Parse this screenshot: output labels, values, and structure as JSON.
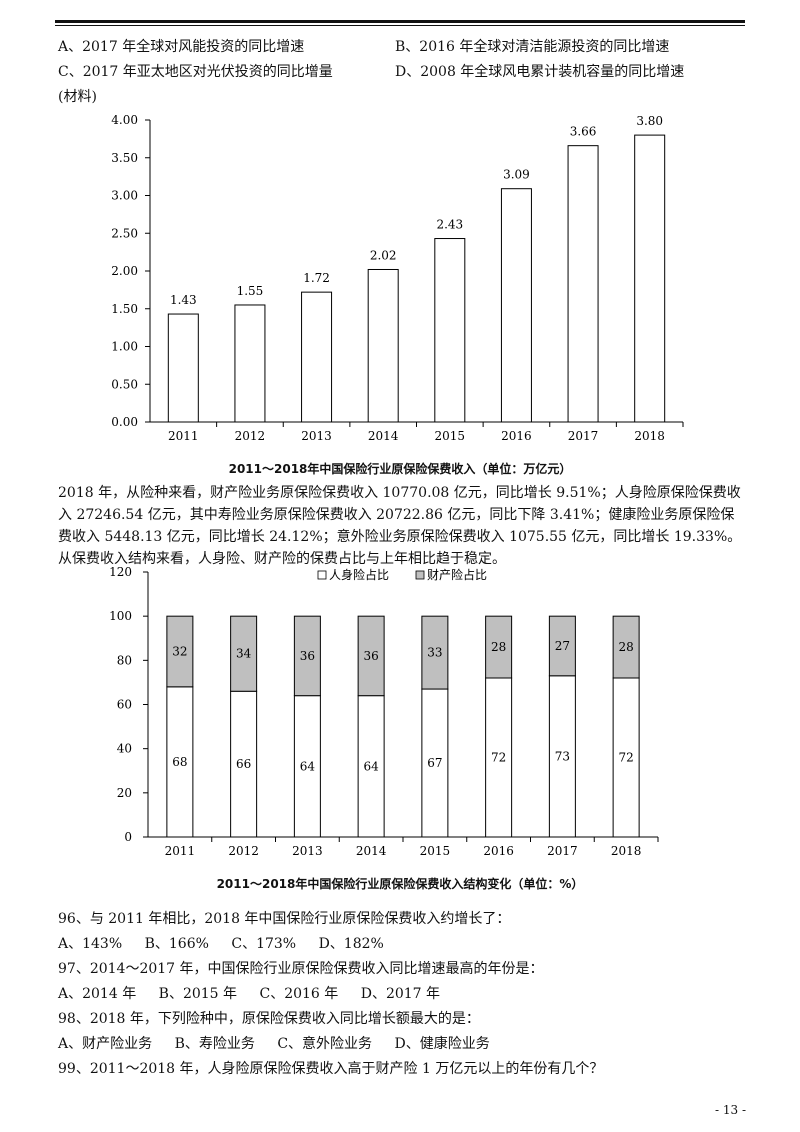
{
  "header_options": {
    "a": "A、2017 年全球对风能投资的同比增速",
    "b": "B、2016 年全球对清洁能源投资的同比增速",
    "c": "C、2017 年亚太地区对光伏投资的同比增量",
    "d": "D、2008 年全球风电累计装机容量的同比增速"
  },
  "material_label": "(材料)",
  "chart_data": [
    {
      "type": "bar",
      "title": "2011～2018年中国保险行业原保险保费收入（单位：万亿元）",
      "categories": [
        "2011",
        "2012",
        "2013",
        "2014",
        "2015",
        "2016",
        "2017",
        "2018"
      ],
      "values": [
        1.43,
        1.55,
        1.72,
        2.02,
        2.43,
        3.09,
        3.66,
        3.8
      ],
      "value_labels": [
        "1.43",
        "1.55",
        "1.72",
        "2.02",
        "2.43",
        "3.09",
        "3.66",
        "3.80"
      ],
      "ylim": [
        0,
        4
      ],
      "yticks": [
        "0.00",
        "0.50",
        "1.00",
        "1.50",
        "2.00",
        "2.50",
        "3.00",
        "3.50",
        "4.00"
      ],
      "grid": false
    },
    {
      "type": "bar",
      "stacked": true,
      "title": "2011～2018年中国保险行业原保险保费收入结构变化（单位：%）",
      "categories": [
        "2011",
        "2012",
        "2013",
        "2014",
        "2015",
        "2016",
        "2017",
        "2018"
      ],
      "series": [
        {
          "name": "人身险占比",
          "values": [
            68,
            66,
            64,
            64,
            67,
            72,
            73,
            72
          ],
          "color": "#ffffff"
        },
        {
          "name": "财产险占比",
          "values": [
            32,
            34,
            36,
            36,
            33,
            28,
            27,
            28
          ],
          "color": "#bfbfbf"
        }
      ],
      "ylim": [
        0,
        120
      ],
      "yticks": [
        "0",
        "20",
        "40",
        "60",
        "80",
        "100",
        "120"
      ],
      "legend": "top",
      "grid": false
    }
  ],
  "paragraph": "2018 年，从险种来看，财产险业务原保险保费收入 10770.08 亿元，同比增长 9.51%；人身险原保险保费收入 27246.54 亿元，其中寿险业务原保险保费收入 20722.86 亿元，同比下降 3.41%；健康险业务原保险保费收入 5448.13 亿元，同比增长 24.12%；意外险业务原保险保费收入 1075.55 亿元，同比增长 19.33%。从保费收入结构来看，人身险、财产险的保费占比与上年相比趋于稳定。",
  "questions": [
    {
      "stem": "96、与 2011 年相比，2018 年中国保险行业原保险保费收入约增长了：",
      "options": [
        "A、143%",
        "B、166%",
        "C、173%",
        "D、182%"
      ]
    },
    {
      "stem": "97、2014～2017 年，中国保险行业原保险保费收入同比增速最高的年份是：",
      "options": [
        "A、2014 年",
        "B、2015 年",
        "C、2016 年",
        "D、2017 年"
      ]
    },
    {
      "stem": "98、2018 年，下列险种中，原保险保费收入同比增长额最大的是：",
      "options": [
        "A、财产险业务",
        "B、寿险业务",
        "C、意外险业务",
        "D、健康险业务"
      ]
    },
    {
      "stem": "99、2011～2018 年，人身险原保险保费收入高于财产险 1 万亿元以上的年份有几个？",
      "options": []
    }
  ],
  "page_number": "- 13 -"
}
